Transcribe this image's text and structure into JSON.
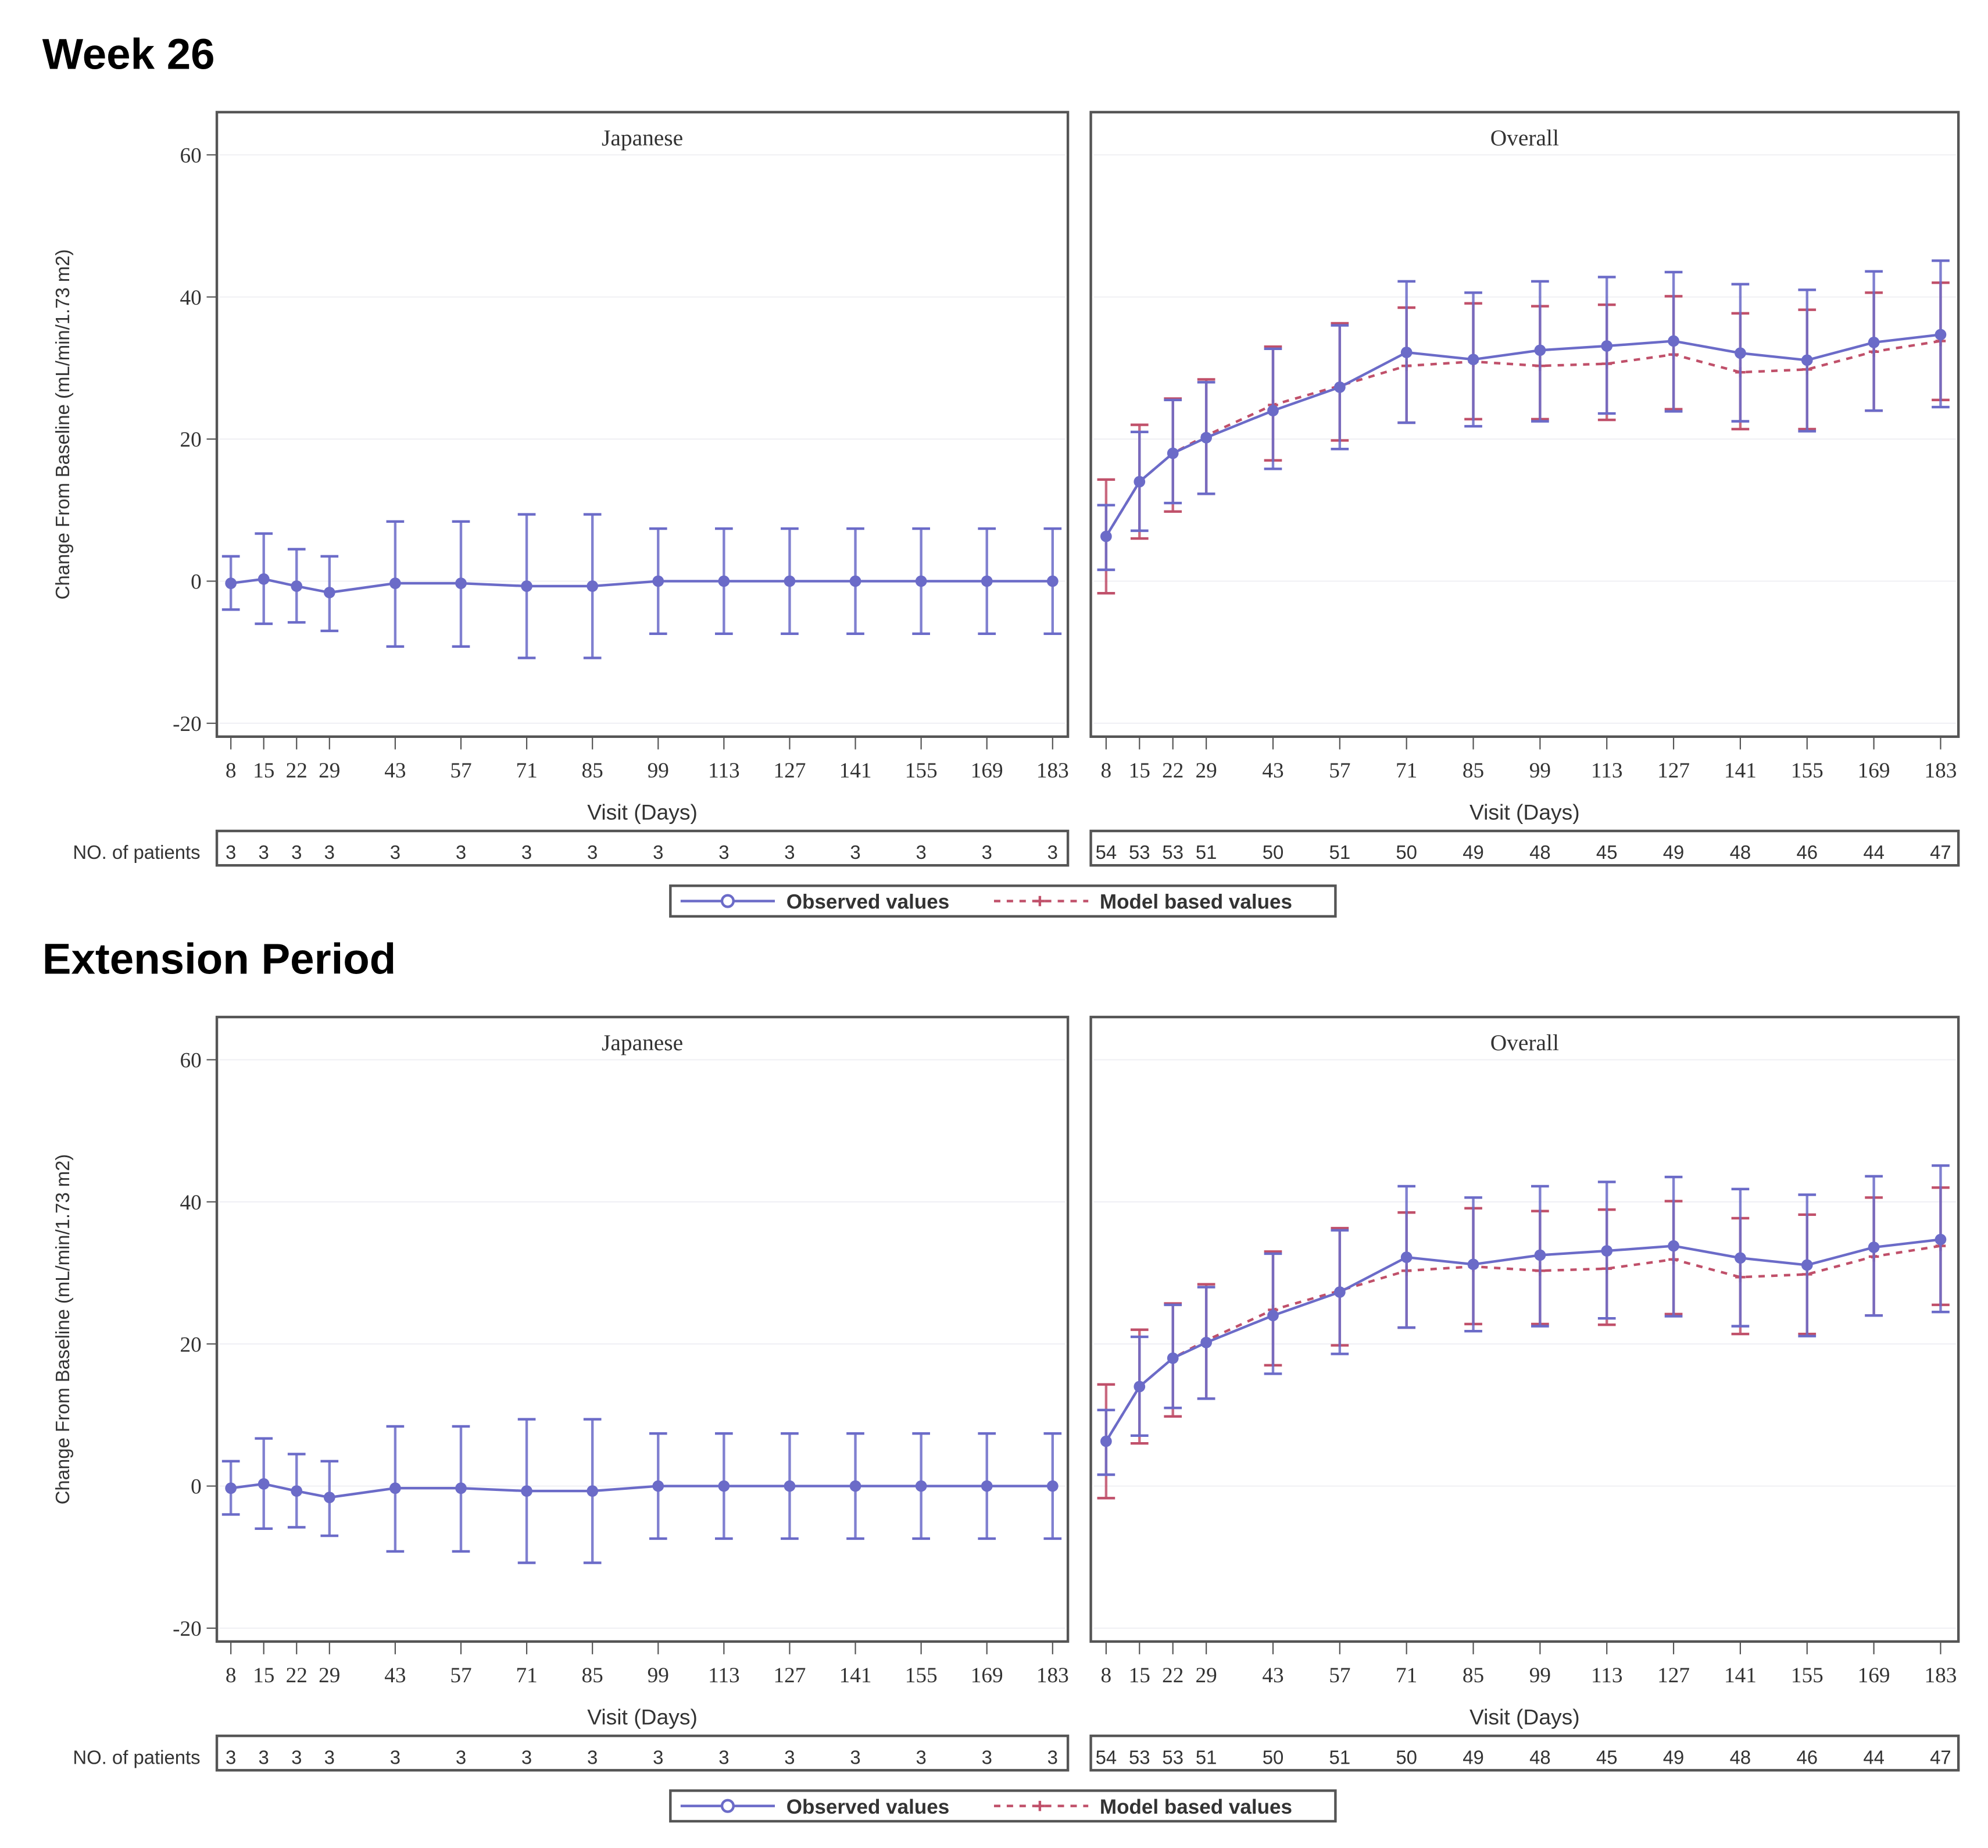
{
  "colors": {
    "observed": "#6b6bc8",
    "model": "#c0506a",
    "frame": "#555555",
    "grid": "#f0f0f4"
  },
  "legend": {
    "observed": "Observed values",
    "model": "Model based values"
  },
  "chart_data": [
    {
      "type": "line",
      "title": "Week 26",
      "ylabel": "Change From Baseline (mL/min/1.73 m2)",
      "xlabel": "Visit (Days)",
      "ylim": [
        -20,
        60
      ],
      "yticks": [
        -20,
        0,
        20,
        40,
        60
      ],
      "x": [
        8,
        15,
        22,
        29,
        43,
        57,
        71,
        85,
        99,
        113,
        127,
        141,
        155,
        169,
        183
      ],
      "patients_label": "NO. of patients",
      "grid": true,
      "legend_position": "bottom",
      "panels": [
        {
          "name": "Japanese",
          "patients": [
            3,
            3,
            3,
            3,
            3,
            3,
            3,
            3,
            3,
            3,
            3,
            3,
            3,
            3,
            3
          ],
          "series": [
            {
              "name": "Observed values",
              "values": [
                -0.3,
                0.3,
                -0.7,
                -1.6,
                -0.3,
                -0.3,
                -0.7,
                -0.7,
                0,
                0,
                0,
                0,
                0,
                0,
                0
              ],
              "lower": [
                -4,
                -6,
                -5.8,
                -7,
                -9.2,
                -9.2,
                -10.8,
                -10.8,
                -7.4,
                -7.4,
                -7.4,
                -7.4,
                -7.4,
                -7.4,
                -7.4
              ],
              "upper": [
                3.5,
                6.7,
                4.5,
                3.5,
                8.4,
                8.4,
                9.4,
                9.4,
                7.4,
                7.4,
                7.4,
                7.4,
                7.4,
                7.4,
                7.4
              ]
            }
          ]
        },
        {
          "name": "Overall",
          "patients": [
            54,
            53,
            53,
            51,
            50,
            51,
            50,
            49,
            48,
            45,
            49,
            48,
            46,
            44,
            47
          ],
          "series": [
            {
              "name": "Observed values",
              "values": [
                6.3,
                14,
                18,
                20.2,
                24,
                27.3,
                32.2,
                31.2,
                32.5,
                33.1,
                33.8,
                32.1,
                31.1,
                33.6,
                34.7
              ],
              "lower": [
                1.6,
                7.1,
                11,
                12.3,
                15.8,
                18.6,
                22.3,
                21.8,
                22.5,
                23.6,
                23.9,
                22.5,
                21.1,
                24,
                24.5
              ],
              "upper": [
                10.7,
                21,
                25.5,
                28,
                32.7,
                36,
                42.2,
                40.6,
                42.2,
                42.8,
                43.5,
                41.8,
                41,
                43.6,
                45.1
              ]
            },
            {
              "name": "Model based values",
              "values": [
                6.3,
                14,
                18,
                20.5,
                24.8,
                27.5,
                30.3,
                30.9,
                30.3,
                30.6,
                31.9,
                29.4,
                29.8,
                32.3,
                33.8
              ],
              "lower": [
                -1.7,
                6,
                9.8,
                12.3,
                17,
                19.8,
                22.3,
                22.8,
                22.8,
                22.7,
                24.2,
                21.4,
                21.4,
                24,
                25.5
              ],
              "upper": [
                14.3,
                22,
                25.7,
                28.4,
                33,
                36.3,
                38.5,
                39.1,
                38.7,
                38.9,
                40.1,
                37.7,
                38.2,
                40.6,
                42
              ]
            }
          ]
        }
      ]
    },
    {
      "type": "line",
      "title": "Extension Period",
      "ylabel": "Change From Baseline (mL/min/1.73 m2)",
      "xlabel": "Visit (Days)",
      "ylim": [
        -20,
        60
      ],
      "yticks": [
        -20,
        0,
        20,
        40,
        60
      ],
      "x": [
        8,
        15,
        22,
        29,
        43,
        57,
        71,
        85,
        99,
        113,
        127,
        141,
        155,
        169,
        183
      ],
      "patients_label": "NO. of patients",
      "grid": true,
      "legend_position": "bottom",
      "panels": [
        {
          "name": "Japanese",
          "patients": [
            3,
            3,
            3,
            3,
            3,
            3,
            3,
            3,
            3,
            3,
            3,
            3,
            3,
            3,
            3
          ],
          "series": [
            {
              "name": "Observed values",
              "values": [
                -0.3,
                0.3,
                -0.7,
                -1.6,
                -0.3,
                -0.3,
                -0.7,
                -0.7,
                0,
                0,
                0,
                0,
                0,
                0,
                0
              ],
              "lower": [
                -4,
                -6,
                -5.8,
                -7,
                -9.2,
                -9.2,
                -10.8,
                -10.8,
                -7.4,
                -7.4,
                -7.4,
                -7.4,
                -7.4,
                -7.4,
                -7.4
              ],
              "upper": [
                3.5,
                6.7,
                4.5,
                3.5,
                8.4,
                8.4,
                9.4,
                9.4,
                7.4,
                7.4,
                7.4,
                7.4,
                7.4,
                7.4,
                7.4
              ]
            }
          ]
        },
        {
          "name": "Overall",
          "patients": [
            54,
            53,
            53,
            51,
            50,
            51,
            50,
            49,
            48,
            45,
            49,
            48,
            46,
            44,
            47
          ],
          "series": [
            {
              "name": "Observed values",
              "values": [
                6.3,
                14,
                18,
                20.2,
                24,
                27.3,
                32.2,
                31.2,
                32.5,
                33.1,
                33.8,
                32.1,
                31.1,
                33.6,
                34.7
              ],
              "lower": [
                1.6,
                7.1,
                11,
                12.3,
                15.8,
                18.6,
                22.3,
                21.8,
                22.5,
                23.6,
                23.9,
                22.5,
                21.1,
                24,
                24.5
              ],
              "upper": [
                10.7,
                21,
                25.5,
                28,
                32.7,
                36,
                42.2,
                40.6,
                42.2,
                42.8,
                43.5,
                41.8,
                41,
                43.6,
                45.1
              ]
            },
            {
              "name": "Model based values",
              "values": [
                6.3,
                14,
                18,
                20.5,
                24.8,
                27.5,
                30.3,
                30.9,
                30.3,
                30.6,
                31.9,
                29.4,
                29.8,
                32.3,
                33.8
              ],
              "lower": [
                -1.7,
                6,
                9.8,
                12.3,
                17,
                19.8,
                22.3,
                22.8,
                22.8,
                22.7,
                24.2,
                21.4,
                21.4,
                24,
                25.5
              ],
              "upper": [
                14.3,
                22,
                25.7,
                28.4,
                33,
                36.3,
                38.5,
                39.1,
                38.7,
                38.9,
                40.1,
                37.7,
                38.2,
                40.6,
                42
              ]
            }
          ]
        }
      ]
    }
  ]
}
